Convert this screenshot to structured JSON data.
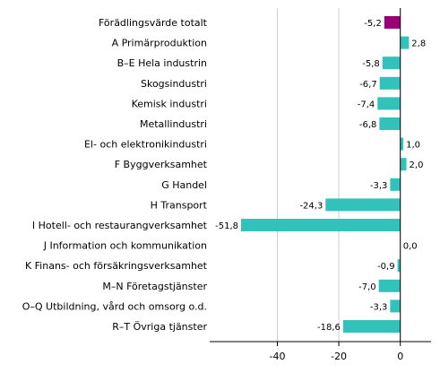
{
  "chart_data": {
    "type": "bar",
    "orientation": "horizontal",
    "title": "",
    "xlabel": "",
    "ylabel": "",
    "categories": [
      "Förädlingsvärde totalt",
      "A Primärproduktion",
      "B–E Hela industrin",
      "Skogsindustri",
      "Kemisk industri",
      "Metallindustri",
      "El- och elektronikindustri",
      "F Byggverksamhet",
      "G Handel",
      "H Transport",
      "I Hotell- och restaurangverksamhet",
      "J Information och kommunikation",
      "K Finans- och försäkringsverksamhet",
      "M–N Företagstjänster",
      "O–Q Utbildning, vård och omsorg o.d.",
      "R–T Övriga tjänster"
    ],
    "values": [
      -5.2,
      2.8,
      -5.8,
      -6.7,
      -7.4,
      -6.8,
      1.0,
      2.0,
      -3.3,
      -24.3,
      -51.8,
      0.0,
      -0.9,
      -7.0,
      -3.3,
      -18.6
    ],
    "value_labels": [
      "-5,2",
      "2,8",
      "-5,8",
      "-6,7",
      "-7,4",
      "-6,8",
      "1,0",
      "2,0",
      "-3,3",
      "-24,3",
      "-51,8",
      "0,0",
      "-0,9",
      "-7,0",
      "-3,3",
      "-18,6"
    ],
    "highlight_index": 0,
    "colors": {
      "highlight": "#990077",
      "bar": "#33c1bb",
      "grid": "#cccccc",
      "axis": "#000000"
    },
    "xlim": [
      -62,
      10
    ],
    "xticks": [
      -40,
      -20,
      0
    ],
    "xtick_labels": [
      "-40",
      "-20",
      "0"
    ],
    "grid": true,
    "legend": "none"
  }
}
